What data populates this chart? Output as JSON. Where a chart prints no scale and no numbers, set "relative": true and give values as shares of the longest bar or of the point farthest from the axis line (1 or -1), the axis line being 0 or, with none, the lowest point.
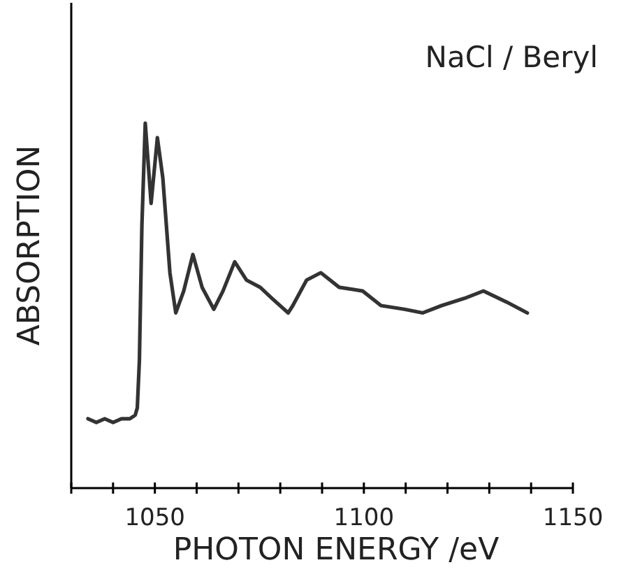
{
  "chart_data": {
    "type": "line",
    "title": "NaCl / Beryl",
    "xlabel": "PHOTON ENERGY /eV",
    "ylabel": "ABSORPTION",
    "relative": true,
    "xlim": [
      1030,
      1150
    ],
    "xticks": [
      {
        "value": 1030,
        "label": null
      },
      {
        "value": 1040,
        "label": null
      },
      1050,
      {
        "value": 1060,
        "label": null
      },
      {
        "value": 1070,
        "label": null
      },
      {
        "value": 1080,
        "label": null
      },
      {
        "value": 1090,
        "label": null
      },
      1100,
      {
        "value": 1110,
        "label": null
      },
      {
        "value": 1120,
        "label": null
      },
      {
        "value": 1130,
        "label": null
      },
      {
        "value": 1140,
        "label": null
      },
      1150
    ],
    "x": [
      1034,
      1036,
      1038,
      1040,
      1042,
      1044,
      1045.3,
      1045.8,
      1046.3,
      1046.9,
      1047.7,
      1049.1,
      1050.6,
      1051.9,
      1053.6,
      1055,
      1056.9,
      1059.1,
      1061.3,
      1064.1,
      1066.3,
      1069.1,
      1071.9,
      1075.2,
      1078,
      1081.9,
      1083,
      1086.3,
      1089.7,
      1094.1,
      1099.7,
      1104.1,
      1109.7,
      1114.1,
      1118.6,
      1124.1,
      1128.6,
      1134.1,
      1139.1
    ],
    "series": [
      {
        "color": "#333333",
        "values": [
          0.19,
          0.18,
          0.19,
          0.18,
          0.19,
          0.19,
          0.2,
          0.22,
          0.35,
          0.72,
          1.0,
          0.78,
          0.96,
          0.85,
          0.59,
          0.48,
          0.54,
          0.64,
          0.55,
          0.49,
          0.54,
          0.62,
          0.57,
          0.55,
          0.52,
          0.48,
          0.5,
          0.57,
          0.59,
          0.55,
          0.54,
          0.5,
          0.49,
          0.48,
          0.5,
          0.52,
          0.54,
          0.51,
          0.48
        ]
      }
    ],
    "marker": "none",
    "line_style": "solid"
  }
}
